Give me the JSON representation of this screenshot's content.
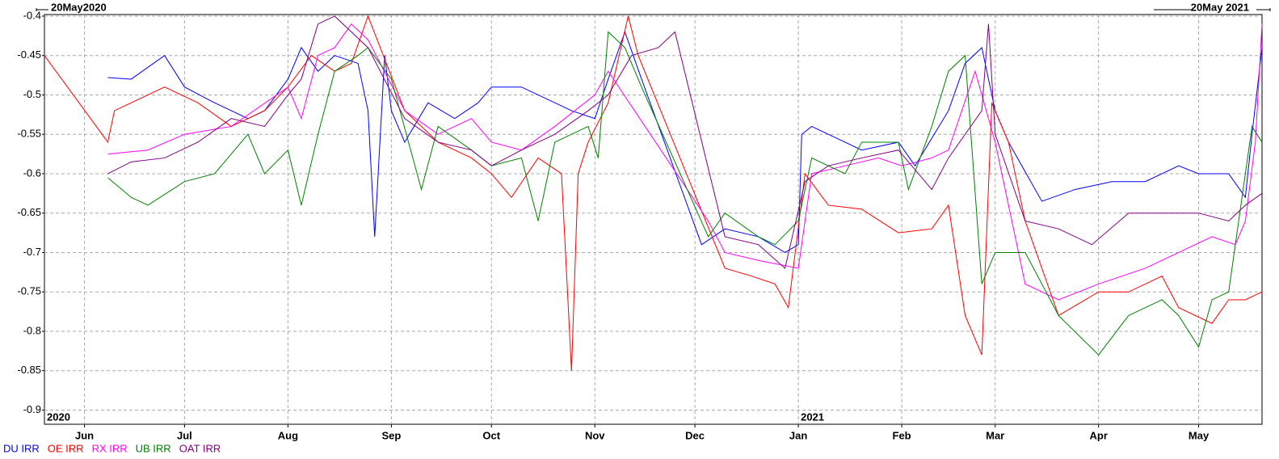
{
  "chart_data": {
    "type": "line",
    "xlim": [
      {
        "value": "2020-05-20",
        "label": "20May2020"
      },
      {
        "value": "2021-05-20",
        "label": "20May 2021"
      }
    ],
    "ylim": [
      -0.918,
      -0.398
    ],
    "yticks": [
      -0.4,
      -0.45,
      -0.5,
      -0.55,
      -0.6,
      -0.65,
      -0.7,
      -0.75,
      -0.8,
      -0.85,
      -0.9
    ],
    "xticks": [
      {
        "value": "2020-06-01",
        "label": "Jun"
      },
      {
        "value": "2020-07-01",
        "label": "Jul"
      },
      {
        "value": "2020-08-01",
        "label": "Aug"
      },
      {
        "value": "2020-09-01",
        "label": "Sep"
      },
      {
        "value": "2020-10-01",
        "label": "Oct"
      },
      {
        "value": "2020-11-01",
        "label": "Nov"
      },
      {
        "value": "2020-12-01",
        "label": "Dec"
      },
      {
        "value": "2021-01-01",
        "label": "Jan"
      },
      {
        "value": "2021-02-01",
        "label": "Feb"
      },
      {
        "value": "2021-03-01",
        "label": "Mar"
      },
      {
        "value": "2021-04-01",
        "label": "Apr"
      },
      {
        "value": "2021-05-01",
        "label": "May"
      }
    ],
    "year_labels": [
      {
        "value": "2020-05-20",
        "label": "2020"
      },
      {
        "value": "2021-01-01",
        "label": "2021"
      }
    ],
    "grid": true,
    "series": [
      {
        "name": "DU IRR",
        "color": "#0000ff",
        "x": [
          "2020-06-08",
          "2020-06-15",
          "2020-06-25",
          "2020-07-01",
          "2020-07-10",
          "2020-07-20",
          "2020-07-25",
          "2020-08-01",
          "2020-08-05",
          "2020-08-10",
          "2020-08-15",
          "2020-08-22",
          "2020-08-25",
          "2020-08-27",
          "2020-08-30",
          "2020-09-01",
          "2020-09-05",
          "2020-09-12",
          "2020-09-20",
          "2020-09-27",
          "2020-10-01",
          "2020-10-10",
          "2020-10-20",
          "2020-10-25",
          "2020-11-01",
          "2020-11-05",
          "2020-11-10",
          "2020-11-15",
          "2020-12-03",
          "2020-12-10",
          "2020-12-20",
          "2020-12-28",
          "2021-01-01",
          "2021-01-02",
          "2021-01-05",
          "2021-01-10",
          "2021-01-20",
          "2021-01-31",
          "2021-02-05",
          "2021-02-15",
          "2021-02-20",
          "2021-02-25",
          "2021-03-01",
          "2021-03-05",
          "2021-03-15",
          "2021-03-25",
          "2021-04-05",
          "2021-04-15",
          "2021-04-25",
          "2021-05-01",
          "2021-05-10",
          "2021-05-15",
          "2021-05-17",
          "2021-05-20"
        ],
        "values": [
          -0.478,
          -0.48,
          -0.45,
          -0.49,
          -0.51,
          -0.53,
          -0.52,
          -0.48,
          -0.44,
          -0.47,
          -0.45,
          -0.46,
          -0.52,
          -0.68,
          -0.45,
          -0.52,
          -0.56,
          -0.51,
          -0.53,
          -0.51,
          -0.49,
          -0.49,
          -0.51,
          -0.52,
          -0.53,
          -0.48,
          -0.42,
          -0.48,
          -0.69,
          -0.67,
          -0.68,
          -0.7,
          -0.69,
          -0.55,
          -0.54,
          -0.55,
          -0.57,
          -0.56,
          -0.59,
          -0.52,
          -0.46,
          -0.44,
          -0.52,
          -0.56,
          -0.635,
          -0.62,
          -0.61,
          -0.61,
          -0.59,
          -0.6,
          -0.6,
          -0.63,
          -0.55,
          -0.44
        ]
      },
      {
        "name": "OE IRR",
        "color": "#ff0000",
        "x": [
          "2020-05-20",
          "2020-06-08",
          "2020-06-10",
          "2020-06-20",
          "2020-06-25",
          "2020-07-05",
          "2020-07-15",
          "2020-07-25",
          "2020-08-01",
          "2020-08-08",
          "2020-08-15",
          "2020-08-20",
          "2020-08-25",
          "2020-09-05",
          "2020-09-15",
          "2020-09-25",
          "2020-10-01",
          "2020-10-07",
          "2020-10-15",
          "2020-10-22",
          "2020-10-25",
          "2020-10-27",
          "2020-10-30",
          "2020-11-05",
          "2020-11-11",
          "2020-11-14",
          "2020-12-10",
          "2020-12-18",
          "2020-12-25",
          "2020-12-29",
          "2021-01-03",
          "2021-01-10",
          "2021-01-20",
          "2021-01-31",
          "2021-02-10",
          "2021-02-15",
          "2021-02-20",
          "2021-02-25",
          "2021-02-28",
          "2021-03-05",
          "2021-03-10",
          "2021-03-20",
          "2021-04-01",
          "2021-04-10",
          "2021-04-20",
          "2021-04-25",
          "2021-05-05",
          "2021-05-10",
          "2021-05-15",
          "2021-05-20"
        ],
        "values": [
          -0.45,
          -0.56,
          -0.52,
          -0.5,
          -0.49,
          -0.51,
          -0.54,
          -0.52,
          -0.49,
          -0.45,
          -0.47,
          -0.46,
          -0.4,
          -0.52,
          -0.56,
          -0.58,
          -0.6,
          -0.63,
          -0.58,
          -0.6,
          -0.85,
          -0.6,
          -0.56,
          -0.51,
          -0.4,
          -0.45,
          -0.72,
          -0.73,
          -0.74,
          -0.77,
          -0.6,
          -0.64,
          -0.645,
          -0.675,
          -0.67,
          -0.64,
          -0.78,
          -0.83,
          -0.51,
          -0.56,
          -0.66,
          -0.78,
          -0.75,
          -0.75,
          -0.73,
          -0.77,
          -0.79,
          -0.76,
          -0.76,
          -0.75
        ]
      },
      {
        "name": "RX IRR",
        "color": "#ff00ff",
        "x": [
          "2020-06-08",
          "2020-06-20",
          "2020-07-01",
          "2020-07-15",
          "2020-08-01",
          "2020-08-05",
          "2020-08-10",
          "2020-08-15",
          "2020-08-20",
          "2020-08-25",
          "2020-09-05",
          "2020-09-15",
          "2020-09-25",
          "2020-10-01",
          "2020-10-10",
          "2020-10-20",
          "2020-11-01",
          "2020-11-05",
          "2020-12-05",
          "2020-12-10",
          "2020-12-20",
          "2021-01-01",
          "2021-01-05",
          "2021-01-15",
          "2021-01-25",
          "2021-02-01",
          "2021-02-10",
          "2021-02-15",
          "2021-02-23",
          "2021-03-01",
          "2021-03-10",
          "2021-03-20",
          "2021-04-01",
          "2021-04-15",
          "2021-04-25",
          "2021-05-05",
          "2021-05-12",
          "2021-05-15",
          "2021-05-18",
          "2021-05-20"
        ],
        "values": [
          -0.575,
          -0.57,
          -0.55,
          -0.54,
          -0.49,
          -0.53,
          -0.45,
          -0.44,
          -0.41,
          -0.43,
          -0.52,
          -0.55,
          -0.53,
          -0.56,
          -0.57,
          -0.54,
          -0.5,
          -0.47,
          -0.66,
          -0.7,
          -0.71,
          -0.72,
          -0.6,
          -0.59,
          -0.58,
          -0.59,
          -0.58,
          -0.57,
          -0.47,
          -0.56,
          -0.74,
          -0.76,
          -0.74,
          -0.72,
          -0.7,
          -0.68,
          -0.69,
          -0.66,
          -0.56,
          -0.41
        ]
      },
      {
        "name": "UB IRR",
        "color": "#008000",
        "x": [
          "2020-06-08",
          "2020-06-15",
          "2020-06-20",
          "2020-07-01",
          "2020-07-10",
          "2020-07-20",
          "2020-07-25",
          "2020-08-01",
          "2020-08-05",
          "2020-08-10",
          "2020-08-15",
          "2020-08-22",
          "2020-08-25",
          "2020-09-01",
          "2020-09-10",
          "2020-09-15",
          "2020-09-25",
          "2020-10-01",
          "2020-10-10",
          "2020-10-15",
          "2020-10-20",
          "2020-10-30",
          "2020-11-02",
          "2020-11-05",
          "2020-11-10",
          "2020-11-15",
          "2020-12-05",
          "2020-12-10",
          "2020-12-20",
          "2020-12-25",
          "2021-01-01",
          "2021-01-05",
          "2021-01-15",
          "2021-01-20",
          "2021-01-31",
          "2021-02-03",
          "2021-02-10",
          "2021-02-15",
          "2021-02-20",
          "2021-02-25",
          "2021-03-01",
          "2021-03-10",
          "2021-03-20",
          "2021-04-01",
          "2021-04-10",
          "2021-04-20",
          "2021-04-25",
          "2021-05-01",
          "2021-05-05",
          "2021-05-10",
          "2021-05-15",
          "2021-05-17",
          "2021-05-20"
        ],
        "values": [
          -0.605,
          -0.63,
          -0.64,
          -0.61,
          -0.6,
          -0.55,
          -0.6,
          -0.57,
          -0.64,
          -0.55,
          -0.47,
          -0.45,
          -0.44,
          -0.48,
          -0.62,
          -0.54,
          -0.57,
          -0.59,
          -0.58,
          -0.66,
          -0.56,
          -0.54,
          -0.58,
          -0.42,
          -0.44,
          -0.49,
          -0.68,
          -0.65,
          -0.68,
          -0.69,
          -0.66,
          -0.58,
          -0.6,
          -0.56,
          -0.56,
          -0.62,
          -0.54,
          -0.47,
          -0.45,
          -0.74,
          -0.7,
          -0.7,
          -0.78,
          -0.83,
          -0.78,
          -0.76,
          -0.78,
          -0.82,
          -0.76,
          -0.75,
          -0.6,
          -0.54,
          -0.56
        ]
      },
      {
        "name": "OAT IRR",
        "color": "#800080",
        "x": [
          "2020-06-08",
          "2020-06-15",
          "2020-06-25",
          "2020-07-05",
          "2020-07-15",
          "2020-07-25",
          "2020-08-01",
          "2020-08-05",
          "2020-08-10",
          "2020-08-15",
          "2020-08-25",
          "2020-09-05",
          "2020-09-15",
          "2020-09-25",
          "2020-10-01",
          "2020-10-10",
          "2020-10-20",
          "2020-10-30",
          "2020-11-05",
          "2020-11-12",
          "2020-11-20",
          "2020-11-25",
          "2020-12-10",
          "2020-12-20",
          "2020-12-28",
          "2021-01-03",
          "2021-01-10",
          "2021-01-20",
          "2021-01-31",
          "2021-02-10",
          "2021-02-15",
          "2021-02-25",
          "2021-02-27",
          "2021-03-01",
          "2021-03-10",
          "2021-03-20",
          "2021-03-30",
          "2021-04-10",
          "2021-04-20",
          "2021-05-01",
          "2021-05-10",
          "2021-05-15",
          "2021-05-20"
        ],
        "values": [
          -0.6,
          -0.585,
          -0.58,
          -0.56,
          -0.53,
          -0.54,
          -0.5,
          -0.48,
          -0.41,
          -0.4,
          -0.44,
          -0.53,
          -0.56,
          -0.57,
          -0.59,
          -0.57,
          -0.55,
          -0.52,
          -0.5,
          -0.45,
          -0.44,
          -0.42,
          -0.68,
          -0.69,
          -0.72,
          -0.61,
          -0.59,
          -0.58,
          -0.57,
          -0.62,
          -0.58,
          -0.52,
          -0.41,
          -0.55,
          -0.66,
          -0.67,
          -0.69,
          -0.65,
          -0.65,
          -0.65,
          -0.66,
          -0.64,
          -0.625
        ]
      }
    ]
  }
}
